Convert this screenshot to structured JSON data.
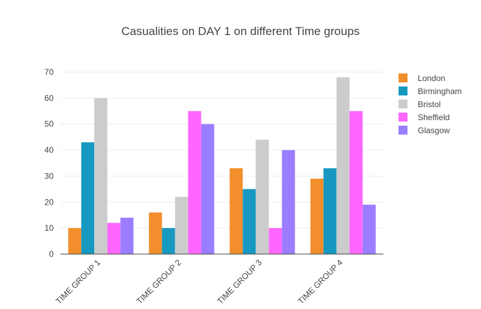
{
  "chart_data": {
    "type": "bar",
    "title": "Casualities on DAY 1 on different Time groups",
    "xlabel": "",
    "ylabel": "",
    "categories": [
      "TIME GROUP 1",
      "TIME GROUP 2",
      "TIME GROUP 3",
      "TIME GROUP 4"
    ],
    "ylim": [
      0,
      70
    ],
    "yticks": [
      0,
      10,
      20,
      30,
      40,
      50,
      60,
      70
    ],
    "grid": true,
    "legend_position": "right",
    "series": [
      {
        "name": "London",
        "color": "#f28e2b",
        "values": [
          10,
          16,
          33,
          29
        ]
      },
      {
        "name": "Birmingham",
        "color": "#1798c1",
        "values": [
          43,
          10,
          25,
          33
        ]
      },
      {
        "name": "Bristol",
        "color": "#cccccc",
        "values": [
          60,
          22,
          44,
          68
        ]
      },
      {
        "name": "Sheffield",
        "color": "#ff66ff",
        "values": [
          12,
          55,
          10,
          55
        ]
      },
      {
        "name": "Glasgow",
        "color": "#9b7eff",
        "values": [
          14,
          50,
          40,
          19
        ]
      }
    ]
  }
}
